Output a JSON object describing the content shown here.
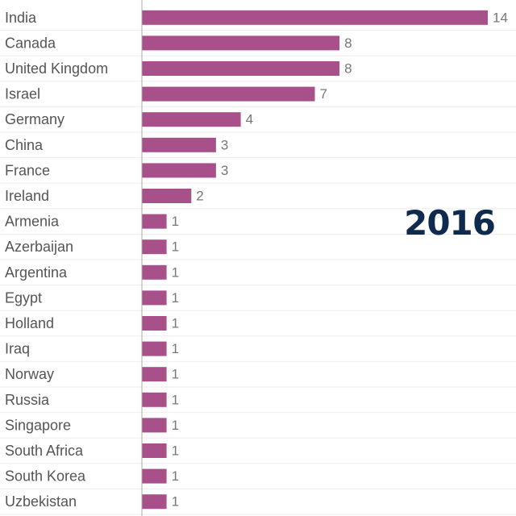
{
  "annotation": "2016",
  "colors": {
    "bar": "#a8508a",
    "axis": "#aaaaaa",
    "grid": "#eeeeee",
    "annotation": "#0f2a4f"
  },
  "chart_data": {
    "type": "bar",
    "orientation": "horizontal",
    "title": "",
    "xlabel": "",
    "ylabel": "",
    "categories": [
      "India",
      "Canada",
      "United Kingdom",
      "Israel",
      "Germany",
      "China",
      "France",
      "Ireland",
      "Armenia",
      "Azerbaijan",
      "Argentina",
      "Egypt",
      "Holland",
      "Iraq",
      "Norway",
      "Russia",
      "Singapore",
      "South Africa",
      "South Korea",
      "Uzbekistan"
    ],
    "values": [
      14,
      8,
      8,
      7,
      4,
      3,
      3,
      2,
      1,
      1,
      1,
      1,
      1,
      1,
      1,
      1,
      1,
      1,
      1,
      1
    ],
    "xlim": [
      0,
      14
    ],
    "data_labels": true,
    "grid": true,
    "legend": "none"
  }
}
